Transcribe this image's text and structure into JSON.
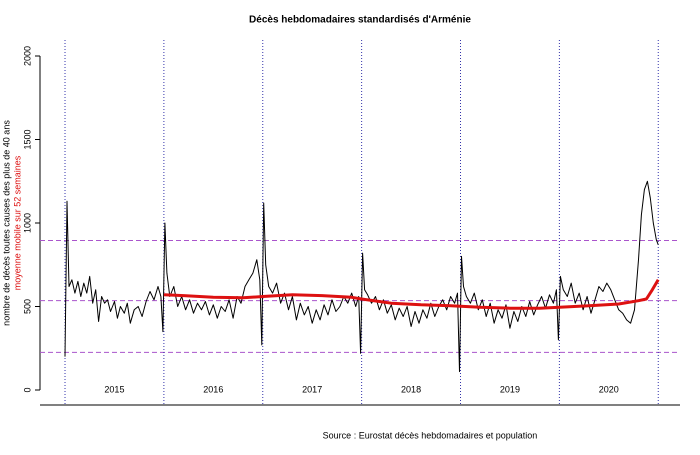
{
  "chart_data": {
    "type": "line",
    "title": "Décès hebdomadaires standardisés d'Arménie",
    "ylabel": "nombre de décès toutes causes des plus de 40 ans",
    "source": "Source : Eurostat décès hebdomadaires et population",
    "xlim": [
      2014.747,
      2021.22
    ],
    "ylim": [
      0,
      2000
    ],
    "yticks": [
      0,
      500,
      1000,
      1500,
      2000
    ],
    "vlines": [
      2015,
      2016,
      2017,
      2018,
      2019,
      2020,
      2021
    ],
    "vline_color": "#3333aa",
    "year_labels": [
      "2015",
      "2016",
      "2017",
      "2018",
      "2019",
      "2020"
    ],
    "hlines": [
      895,
      535,
      225
    ],
    "hline_color": "#aa55cc",
    "series": [
      {
        "color": "#000000",
        "width": 1,
        "x": [
          2015.0,
          2015.02,
          2015.04,
          2015.07,
          2015.1,
          2015.13,
          2015.16,
          2015.19,
          2015.22,
          2015.25,
          2015.28,
          2015.31,
          2015.34,
          2015.37,
          2015.4,
          2015.43,
          2015.46,
          2015.5,
          2015.53,
          2015.56,
          2015.6,
          2015.63,
          2015.66,
          2015.7,
          2015.74,
          2015.78,
          2015.82,
          2015.86,
          2015.9,
          2015.94,
          2015.97,
          2015.99,
          2016.01,
          2016.03,
          2016.06,
          2016.1,
          2016.14,
          2016.18,
          2016.22,
          2016.26,
          2016.3,
          2016.34,
          2016.38,
          2016.42,
          2016.46,
          2016.5,
          2016.54,
          2016.58,
          2016.62,
          2016.66,
          2016.7,
          2016.74,
          2016.78,
          2016.82,
          2016.86,
          2016.9,
          2016.94,
          2016.97,
          2016.99,
          2017.01,
          2017.03,
          2017.06,
          2017.1,
          2017.14,
          2017.18,
          2017.22,
          2017.26,
          2017.3,
          2017.34,
          2017.38,
          2017.42,
          2017.46,
          2017.5,
          2017.54,
          2017.58,
          2017.62,
          2017.66,
          2017.7,
          2017.74,
          2017.78,
          2017.82,
          2017.86,
          2017.9,
          2017.94,
          2017.97,
          2017.99,
          2018.01,
          2018.03,
          2018.06,
          2018.1,
          2018.14,
          2018.18,
          2018.22,
          2018.26,
          2018.3,
          2018.34,
          2018.38,
          2018.42,
          2018.46,
          2018.5,
          2018.54,
          2018.58,
          2018.62,
          2018.66,
          2018.7,
          2018.74,
          2018.78,
          2018.82,
          2018.86,
          2018.9,
          2018.94,
          2018.97,
          2018.99,
          2019.01,
          2019.03,
          2019.06,
          2019.1,
          2019.14,
          2019.18,
          2019.22,
          2019.26,
          2019.3,
          2019.34,
          2019.38,
          2019.42,
          2019.46,
          2019.5,
          2019.54,
          2019.58,
          2019.62,
          2019.66,
          2019.7,
          2019.74,
          2019.78,
          2019.82,
          2019.86,
          2019.9,
          2019.94,
          2019.97,
          2019.99,
          2020.01,
          2020.04,
          2020.08,
          2020.12,
          2020.16,
          2020.2,
          2020.24,
          2020.28,
          2020.32,
          2020.36,
          2020.4,
          2020.44,
          2020.48,
          2020.52,
          2020.56,
          2020.6,
          2020.64,
          2020.68,
          2020.72,
          2020.76,
          2020.8,
          2020.83,
          2020.86,
          2020.89,
          2020.92,
          2020.95,
          2020.98,
          2021.0
        ],
        "values": [
          200,
          1130,
          620,
          660,
          580,
          650,
          560,
          640,
          580,
          680,
          520,
          600,
          410,
          560,
          520,
          540,
          470,
          530,
          430,
          500,
          460,
          520,
          400,
          480,
          500,
          440,
          530,
          590,
          540,
          620,
          560,
          350,
          1000,
          700,
          560,
          620,
          500,
          560,
          480,
          540,
          460,
          520,
          480,
          530,
          450,
          510,
          430,
          500,
          470,
          540,
          430,
          560,
          520,
          620,
          660,
          700,
          780,
          660,
          270,
          1120,
          750,
          620,
          580,
          640,
          520,
          580,
          480,
          560,
          420,
          520,
          450,
          500,
          400,
          480,
          420,
          510,
          450,
          540,
          470,
          500,
          560,
          520,
          580,
          500,
          560,
          220,
          820,
          600,
          570,
          520,
          560,
          480,
          540,
          460,
          510,
          420,
          490,
          440,
          500,
          380,
          470,
          400,
          480,
          430,
          520,
          440,
          500,
          540,
          480,
          560,
          520,
          580,
          110,
          800,
          620,
          560,
          520,
          580,
          480,
          540,
          440,
          520,
          400,
          480,
          430,
          510,
          370,
          470,
          410,
          500,
          440,
          530,
          450,
          510,
          560,
          490,
          570,
          520,
          600,
          300,
          680,
          600,
          560,
          640,
          520,
          580,
          480,
          560,
          460,
          540,
          620,
          590,
          640,
          600,
          540,
          480,
          460,
          420,
          400,
          480,
          780,
          1050,
          1200,
          1250,
          1150,
          1000,
          900,
          870
        ]
      },
      {
        "name": "moyenne mobile sur 52 semaines",
        "color": "#dd1111",
        "width": 3,
        "x": [
          2016.0,
          2016.2,
          2016.5,
          2016.8,
          2017.0,
          2017.3,
          2017.6,
          2017.9,
          2018.0,
          2018.3,
          2018.6,
          2018.9,
          2019.2,
          2019.5,
          2019.8,
          2020.0,
          2020.3,
          2020.6,
          2020.8,
          2020.88,
          2020.94,
          2021.0
        ],
        "values": [
          570,
          565,
          555,
          552,
          560,
          570,
          565,
          555,
          545,
          520,
          510,
          505,
          495,
          490,
          490,
          495,
          505,
          515,
          535,
          545,
          600,
          660
        ]
      }
    ]
  }
}
